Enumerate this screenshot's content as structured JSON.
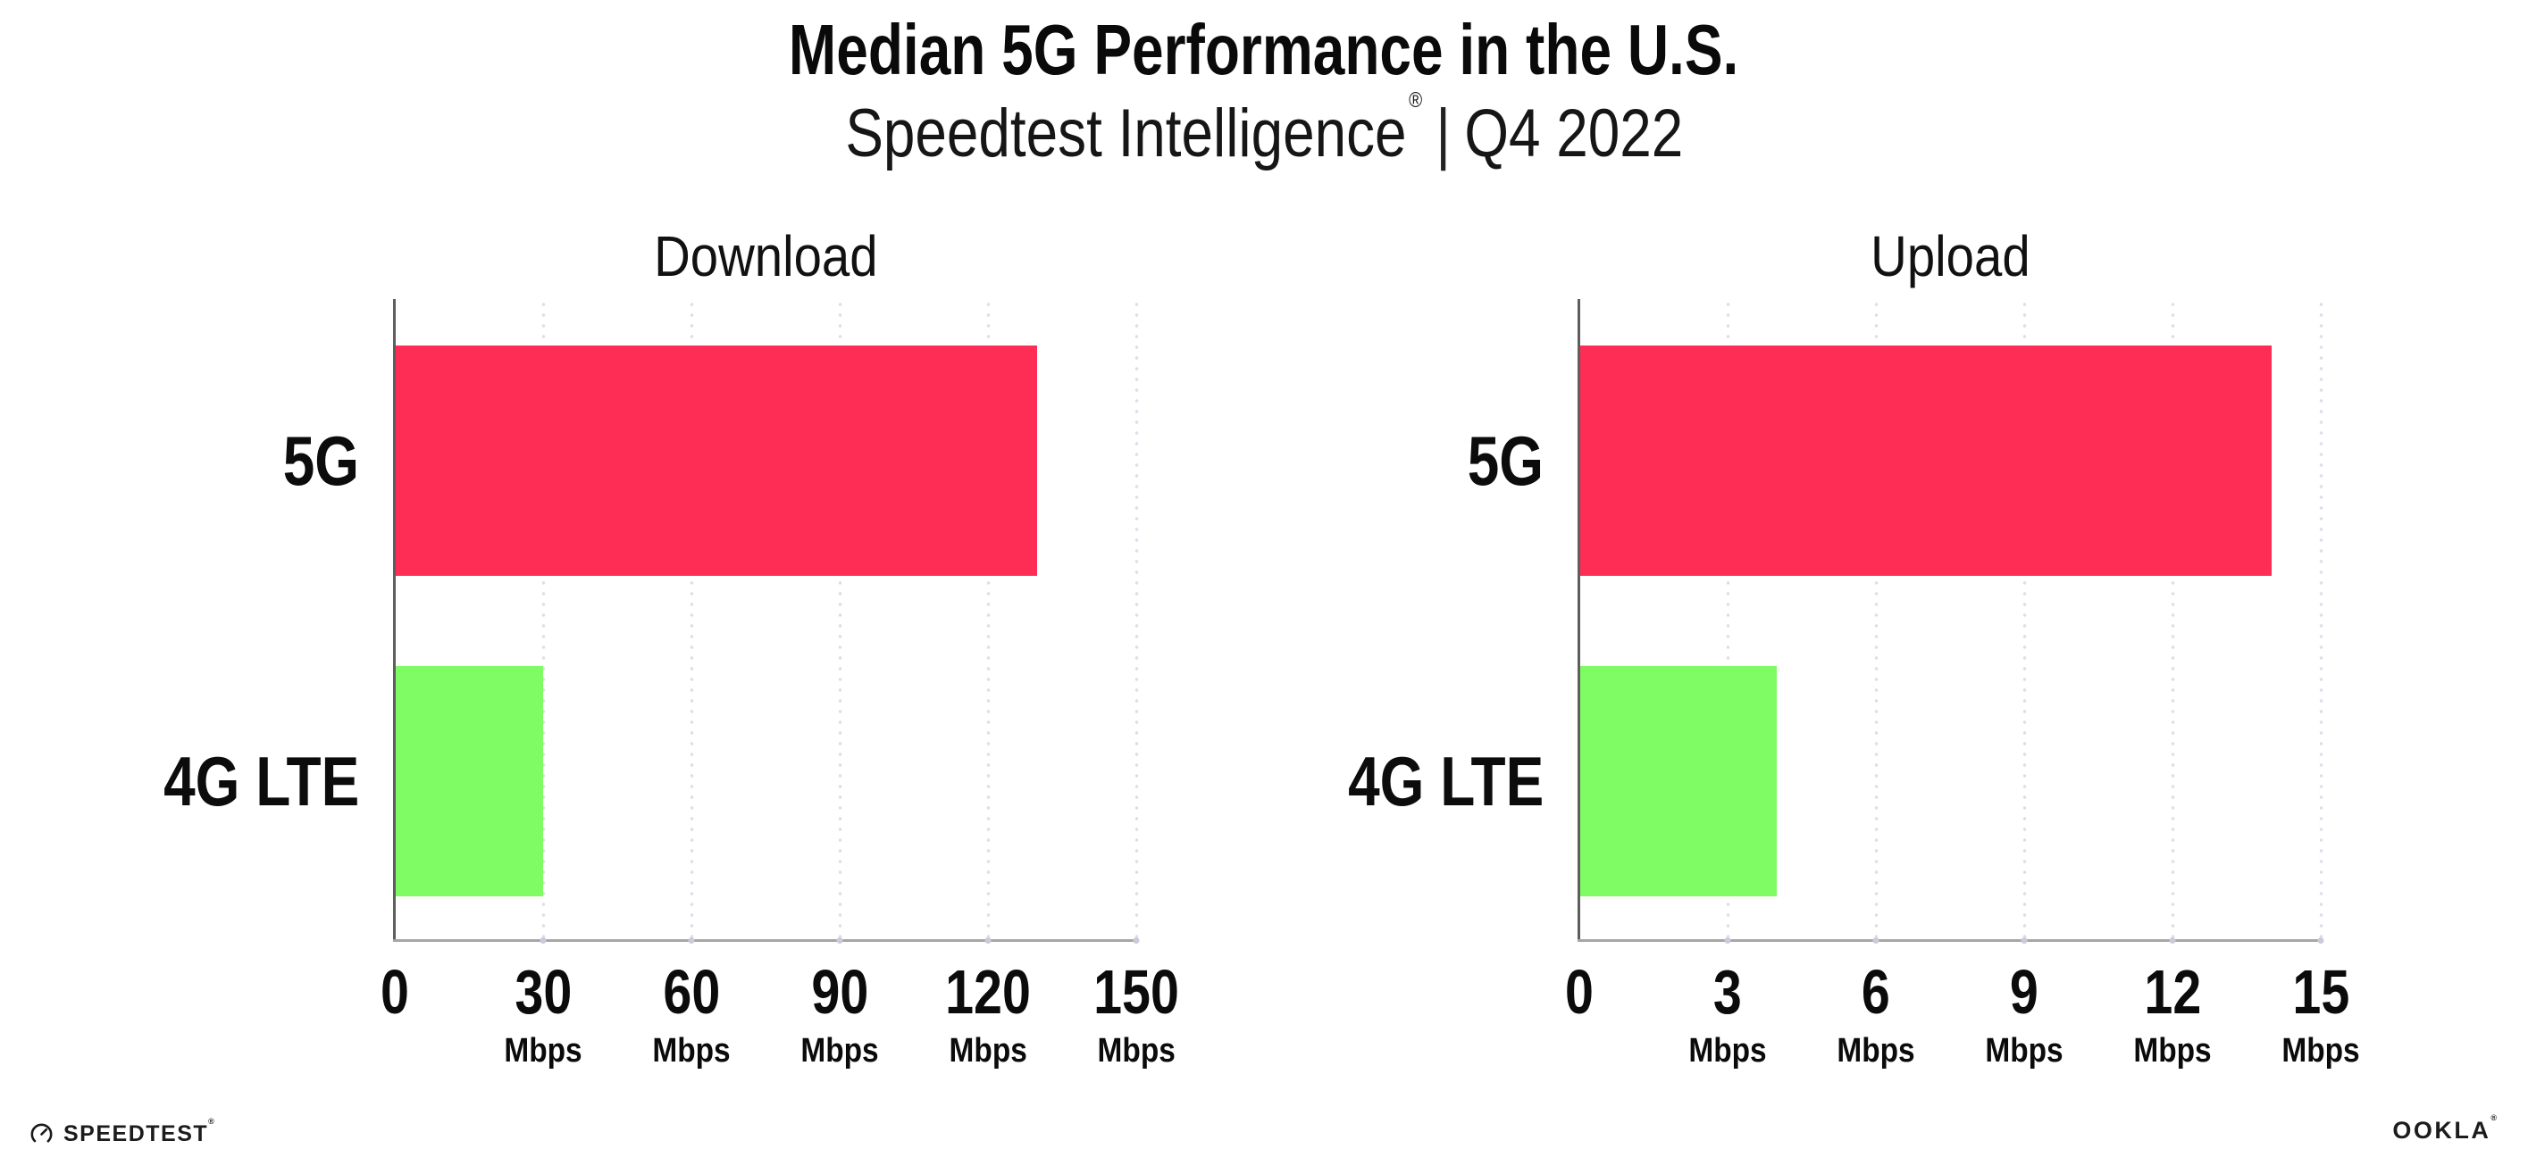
{
  "header": {
    "title": "Median 5G Performance in the U.S.",
    "subtitle_brand": "Speedtest Intelligence",
    "subtitle_reg": "®",
    "subtitle_divider": "|",
    "subtitle_period": "Q4 2022"
  },
  "chart_data": [
    {
      "type": "bar",
      "orientation": "horizontal",
      "title": "Download",
      "categories": [
        "5G",
        "4G LTE"
      ],
      "values": [
        130,
        30
      ],
      "unit": "Mbps",
      "xlim": [
        0,
        150
      ],
      "xticks": [
        0,
        30,
        60,
        90,
        120,
        150
      ],
      "bar_colors": [
        "#FD2D55",
        "#7FFB64"
      ],
      "grid": "dotted-vertical",
      "legend": "none"
    },
    {
      "type": "bar",
      "orientation": "horizontal",
      "title": "Upload",
      "categories": [
        "5G",
        "4G LTE"
      ],
      "values": [
        14,
        4
      ],
      "unit": "Mbps",
      "xlim": [
        0,
        15
      ],
      "xticks": [
        0,
        3,
        6,
        9,
        12,
        15
      ],
      "bar_colors": [
        "#FD2D55",
        "#7FFB64"
      ],
      "grid": "dotted-vertical",
      "legend": "none"
    }
  ],
  "footer": {
    "speedtest_wordmark": "SPEEDTEST",
    "speedtest_reg": "®",
    "ookla_wordmark": "OOKLA",
    "ookla_reg": "®"
  },
  "colors": {
    "bar_5g": "#FD2D55",
    "bar_4g_lte": "#7FFB64",
    "grid_dot": "#DDDEE9",
    "x_axis": "#A6A6A6",
    "y_axis": "#5E5E5E",
    "text": "#0D0D0D"
  }
}
